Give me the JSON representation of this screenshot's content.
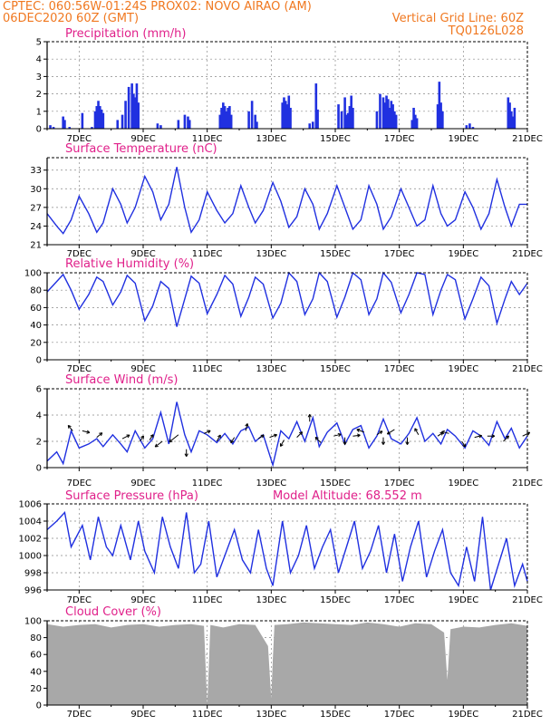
{
  "header": {
    "line1_left": "CPTEC:   060:56W-01:24S   PROX02: NOVO AIRAO (AM)",
    "line2_left": "06DEC2020 60Z (GMT)",
    "line2_right": "Vertical Grid Line: 60Z",
    "line3_right": "TQ0126L028"
  },
  "colors": {
    "header": "#f07820",
    "title": "#e0208a",
    "series": "#2030e0",
    "cloud": "#a8a8a8",
    "grid": "#888888"
  },
  "x_axis": {
    "range_days": [
      6,
      21
    ],
    "tick_days": [
      7,
      9,
      11,
      13,
      15,
      17,
      19,
      21
    ],
    "tick_labels": [
      "7DEC",
      "9DEC",
      "11DEC",
      "13DEC",
      "15DEC",
      "17DEC",
      "19DEC",
      "21DEC"
    ]
  },
  "chart_data": [
    {
      "type": "bar",
      "title": "Precipitation (mm/h)",
      "ylim": [
        0,
        5
      ],
      "yticks": [
        0,
        1,
        2,
        3,
        4,
        5
      ],
      "x_days": [
        6.1,
        6.2,
        6.5,
        6.55,
        6.7,
        7.1,
        7.4,
        7.5,
        7.55,
        7.6,
        7.65,
        7.7,
        7.75,
        8.2,
        8.35,
        8.45,
        8.55,
        8.65,
        8.7,
        8.75,
        8.8,
        8.85,
        9.45,
        9.55,
        10.1,
        10.3,
        10.4,
        10.45,
        11.4,
        11.45,
        11.5,
        11.55,
        11.6,
        11.65,
        11.7,
        11.75,
        12.3,
        12.4,
        12.5,
        12.55,
        13.35,
        13.4,
        13.45,
        13.5,
        13.55,
        13.6,
        14.2,
        14.3,
        14.4,
        14.45,
        15.1,
        15.2,
        15.3,
        15.35,
        15.4,
        15.45,
        15.5,
        15.55,
        16.3,
        16.4,
        16.5,
        16.55,
        16.6,
        16.65,
        16.7,
        16.75,
        16.8,
        16.85,
        16.9,
        17.4,
        17.45,
        17.5,
        17.55,
        18.2,
        18.25,
        18.3,
        18.35,
        19.1,
        19.2,
        19.3,
        20.4,
        20.45,
        20.5,
        20.55,
        20.6
      ],
      "values": [
        0.2,
        0.1,
        0.7,
        0.5,
        0.1,
        0.9,
        0.1,
        1.0,
        1.3,
        1.6,
        1.3,
        1.1,
        0.9,
        0.5,
        0.8,
        1.6,
        2.4,
        2.6,
        2.0,
        1.8,
        2.6,
        1.5,
        0.3,
        0.2,
        0.5,
        0.8,
        0.7,
        0.5,
        0.8,
        1.2,
        1.5,
        1.3,
        1.0,
        1.2,
        1.3,
        0.8,
        1.0,
        1.6,
        0.8,
        0.4,
        1.5,
        1.8,
        1.6,
        1.4,
        1.9,
        1.2,
        0.3,
        0.4,
        2.6,
        1.1,
        1.4,
        1.0,
        1.8,
        0.8,
        0.9,
        1.3,
        1.9,
        1.2,
        1.0,
        2.0,
        1.8,
        1.5,
        1.9,
        1.7,
        1.2,
        1.6,
        1.4,
        1.0,
        0.8,
        0.5,
        1.2,
        0.8,
        0.6,
        1.4,
        2.7,
        1.5,
        1.0,
        0.2,
        0.3,
        0.1,
        1.8,
        1.5,
        1.0,
        0.7,
        1.2
      ]
    },
    {
      "type": "line",
      "title": "Surface Temperature (nC)",
      "ylim": [
        21,
        35
      ],
      "yticks": [
        21,
        24,
        27,
        30,
        33
      ],
      "x_days": [
        6,
        6.3,
        6.5,
        6.75,
        7,
        7.3,
        7.55,
        7.75,
        8.05,
        8.3,
        8.5,
        8.75,
        9.05,
        9.3,
        9.55,
        9.8,
        10.05,
        10.3,
        10.5,
        10.75,
        11,
        11.3,
        11.55,
        11.8,
        12.05,
        12.3,
        12.5,
        12.75,
        13.05,
        13.3,
        13.55,
        13.8,
        14.05,
        14.3,
        14.5,
        14.75,
        15.05,
        15.3,
        15.55,
        15.8,
        16.05,
        16.3,
        16.5,
        16.75,
        17.05,
        17.3,
        17.55,
        17.8,
        18.05,
        18.3,
        18.5,
        18.75,
        19.05,
        19.3,
        19.55,
        19.8,
        20.05,
        20.3,
        20.5,
        20.75,
        21
      ],
      "values": [
        26,
        24,
        22.8,
        25,
        28.8,
        26,
        23,
        24.5,
        30,
        27.5,
        24.5,
        27,
        32,
        29.5,
        25,
        27.5,
        33.5,
        27,
        23,
        25,
        29.5,
        26.5,
        24.5,
        26,
        30.5,
        27,
        24.5,
        26.5,
        31,
        28,
        23.8,
        25.5,
        30,
        27.5,
        23.5,
        26,
        30.5,
        27,
        23.5,
        25,
        30.5,
        27.5,
        23.5,
        25.5,
        30,
        27,
        24,
        25,
        30.5,
        26,
        24,
        25,
        29.5,
        27,
        23.5,
        26,
        31.5,
        27,
        24,
        27.5,
        27.5
      ]
    },
    {
      "type": "line",
      "title": "Relative Humidity (%)",
      "ylim": [
        0,
        100
      ],
      "yticks": [
        0,
        20,
        40,
        60,
        80,
        100
      ],
      "x_days": [
        6,
        6.3,
        6.5,
        6.75,
        7,
        7.3,
        7.55,
        7.75,
        8.05,
        8.3,
        8.5,
        8.75,
        9.05,
        9.3,
        9.55,
        9.8,
        10.05,
        10.3,
        10.5,
        10.75,
        11,
        11.3,
        11.55,
        11.8,
        12.05,
        12.3,
        12.5,
        12.75,
        13.05,
        13.3,
        13.55,
        13.8,
        14.05,
        14.3,
        14.5,
        14.75,
        15.05,
        15.3,
        15.55,
        15.8,
        16.05,
        16.3,
        16.5,
        16.75,
        17.05,
        17.3,
        17.55,
        17.8,
        18.05,
        18.3,
        18.5,
        18.75,
        19.05,
        19.3,
        19.55,
        19.8,
        20.05,
        20.3,
        20.5,
        20.75,
        21
      ],
      "values": [
        78,
        90,
        98,
        80,
        58,
        75,
        95,
        90,
        63,
        78,
        97,
        88,
        45,
        62,
        90,
        82,
        38,
        70,
        96,
        88,
        53,
        75,
        97,
        87,
        50,
        72,
        95,
        87,
        48,
        65,
        100,
        90,
        52,
        70,
        100,
        90,
        49,
        72,
        100,
        92,
        52,
        70,
        100,
        89,
        54,
        75,
        100,
        98,
        52,
        80,
        98,
        92,
        47,
        70,
        95,
        85,
        42,
        70,
        90,
        75,
        88
      ]
    },
    {
      "type": "line",
      "title": "Surface Wind (m/s)",
      "ylim": [
        0,
        6
      ],
      "yticks": [
        0,
        2,
        4,
        6
      ],
      "x_days": [
        6,
        6.3,
        6.5,
        6.75,
        7,
        7.3,
        7.55,
        7.75,
        8.05,
        8.3,
        8.5,
        8.75,
        9.05,
        9.3,
        9.55,
        9.8,
        10.05,
        10.3,
        10.5,
        10.75,
        11,
        11.3,
        11.55,
        11.8,
        12.05,
        12.3,
        12.5,
        12.75,
        13.05,
        13.3,
        13.55,
        13.8,
        14.05,
        14.3,
        14.5,
        14.75,
        15.05,
        15.3,
        15.55,
        15.8,
        16.05,
        16.3,
        16.5,
        16.75,
        17.05,
        17.3,
        17.55,
        17.8,
        18.05,
        18.3,
        18.5,
        18.75,
        19.05,
        19.3,
        19.55,
        19.8,
        20.05,
        20.3,
        20.5,
        20.75,
        21
      ],
      "values": [
        0.5,
        1.2,
        0.3,
        2.8,
        1.5,
        1.8,
        2.2,
        1.6,
        2.5,
        1.8,
        1.2,
        2.8,
        1.5,
        2.2,
        4.2,
        1.8,
        5.0,
        2.5,
        1.2,
        2.8,
        2.5,
        1.9,
        2.6,
        1.8,
        2.8,
        3.1,
        2.0,
        2.5,
        0.2,
        2.8,
        2.2,
        3.5,
        2.0,
        3.8,
        1.6,
        2.7,
        3.4,
        1.8,
        2.9,
        3.2,
        1.5,
        2.4,
        3.7,
        2.2,
        1.8,
        2.6,
        3.8,
        2.0,
        2.6,
        1.8,
        2.9,
        2.4,
        1.5,
        2.8,
        2.4,
        1.7,
        3.5,
        2.2,
        3.0,
        1.5,
        2.4
      ],
      "wind_barbs": [
        {
          "x": 6.8,
          "y": 2.8,
          "dx": -5,
          "dy": -6
        },
        {
          "x": 7.1,
          "y": 2.8,
          "dx": 8,
          "dy": 2
        },
        {
          "x": 7.55,
          "y": 2.3,
          "dx": 6,
          "dy": -5
        },
        {
          "x": 8.35,
          "y": 2.2,
          "dx": 8,
          "dy": -4
        },
        {
          "x": 8.9,
          "y": 2.0,
          "dx": 4,
          "dy": -6
        },
        {
          "x": 9.2,
          "y": 2.1,
          "dx": 4,
          "dy": -6
        },
        {
          "x": 9.6,
          "y": 2.0,
          "dx": -8,
          "dy": 6
        },
        {
          "x": 10.1,
          "y": 2.5,
          "dx": -10,
          "dy": 8
        },
        {
          "x": 10.35,
          "y": 1.4,
          "dx": 0,
          "dy": 8
        },
        {
          "x": 10.9,
          "y": 2.6,
          "dx": 7,
          "dy": -3
        },
        {
          "x": 11.3,
          "y": 2.0,
          "dx": 4,
          "dy": -7
        },
        {
          "x": 11.85,
          "y": 2.3,
          "dx": -4,
          "dy": 6
        },
        {
          "x": 12.2,
          "y": 2.8,
          "dx": 2,
          "dy": -8
        },
        {
          "x": 12.6,
          "y": 2.2,
          "dx": 6,
          "dy": -4
        },
        {
          "x": 12.95,
          "y": 2.3,
          "dx": 8,
          "dy": -3
        },
        {
          "x": 13.4,
          "y": 2.1,
          "dx": -4,
          "dy": 7
        },
        {
          "x": 13.8,
          "y": 2.3,
          "dx": 6,
          "dy": -6
        },
        {
          "x": 14.2,
          "y": 3.5,
          "dx": 0,
          "dy": -8
        },
        {
          "x": 14.55,
          "y": 1.9,
          "dx": -6,
          "dy": -6
        },
        {
          "x": 14.95,
          "y": 2.4,
          "dx": 8,
          "dy": -2
        },
        {
          "x": 15.3,
          "y": 2.3,
          "dx": 0,
          "dy": 8
        },
        {
          "x": 15.55,
          "y": 2.4,
          "dx": 8,
          "dy": -1
        },
        {
          "x": 15.9,
          "y": 2.7,
          "dx": -8,
          "dy": -3
        },
        {
          "x": 16.3,
          "y": 2.5,
          "dx": 6,
          "dy": -4
        },
        {
          "x": 16.5,
          "y": 2.3,
          "dx": 0,
          "dy": 8
        },
        {
          "x": 16.85,
          "y": 2.9,
          "dx": -8,
          "dy": 5
        },
        {
          "x": 17.25,
          "y": 2.3,
          "dx": 0,
          "dy": 8
        },
        {
          "x": 17.6,
          "y": 2.5,
          "dx": -4,
          "dy": -7
        },
        {
          "x": 18.2,
          "y": 2.4,
          "dx": 6,
          "dy": -4
        },
        {
          "x": 18.55,
          "y": 2.6,
          "dx": -8,
          "dy": -2
        },
        {
          "x": 18.95,
          "y": 2.0,
          "dx": 4,
          "dy": 6
        },
        {
          "x": 19.35,
          "y": 2.3,
          "dx": 8,
          "dy": -2
        },
        {
          "x": 19.75,
          "y": 2.4,
          "dx": 8,
          "dy": 0
        },
        {
          "x": 20.25,
          "y": 2.0,
          "dx": 6,
          "dy": -6
        },
        {
          "x": 20.85,
          "y": 2.4,
          "dx": 8,
          "dy": -4
        }
      ]
    },
    {
      "type": "line",
      "title": "Surface Pressure (hPa)",
      "subtitle": "Model Altitude: 68.552 m",
      "ylim": [
        996,
        1006
      ],
      "yticks": [
        996,
        998,
        1000,
        1002,
        1004,
        1006
      ],
      "x_days": [
        6,
        6.3,
        6.55,
        6.75,
        7.1,
        7.35,
        7.6,
        7.85,
        8.05,
        8.3,
        8.6,
        8.85,
        9.05,
        9.35,
        9.6,
        9.85,
        10.1,
        10.35,
        10.6,
        10.8,
        11.05,
        11.3,
        11.6,
        11.85,
        12.1,
        12.35,
        12.6,
        12.85,
        13.05,
        13.35,
        13.6,
        13.85,
        14.1,
        14.35,
        14.6,
        14.85,
        15.1,
        15.35,
        15.6,
        15.85,
        16.1,
        16.35,
        16.6,
        16.85,
        17.1,
        17.35,
        17.6,
        17.85,
        18.1,
        18.35,
        18.6,
        18.85,
        19.1,
        19.35,
        19.6,
        19.85,
        20.1,
        20.35,
        20.6,
        20.85,
        21
      ],
      "values": [
        1003,
        1004,
        1005,
        1001,
        1003.5,
        999.5,
        1004.5,
        1001,
        1000,
        1003.5,
        999.5,
        1004,
        1000.5,
        998,
        1004.5,
        1001,
        998.5,
        1005,
        998,
        999,
        1004,
        997.5,
        1000.5,
        1003,
        999.5,
        998,
        1003,
        998.5,
        996.5,
        1004,
        998,
        1000,
        1003.5,
        998.5,
        1001,
        1003,
        998,
        1001,
        1004,
        998.5,
        1000.5,
        1003.5,
        998,
        1002.5,
        997,
        1001,
        1004,
        997.5,
        1000.5,
        1003,
        998,
        996.5,
        1001,
        997,
        1004.5,
        996,
        999,
        1002,
        996.5,
        999,
        997
      ]
    },
    {
      "type": "area",
      "title": "Cloud Cover (%)",
      "ylim": [
        0,
        100
      ],
      "yticks": [
        0,
        20,
        40,
        60,
        80,
        100
      ],
      "x_days": [
        6,
        6.5,
        7,
        7.5,
        8,
        8.5,
        9,
        9.5,
        10,
        10.5,
        10.9,
        11,
        11.1,
        11.5,
        12,
        12.5,
        12.9,
        13,
        13.05,
        13.1,
        13.5,
        14,
        14.5,
        15,
        15.5,
        16,
        16.5,
        17,
        17.5,
        18,
        18.4,
        18.5,
        18.6,
        19,
        19.5,
        20,
        20.5,
        21
      ],
      "values": [
        96,
        93,
        95,
        96,
        92,
        95,
        96,
        93,
        95,
        96,
        94,
        0,
        95,
        92,
        96,
        95,
        70,
        8,
        55,
        95,
        96,
        98,
        97,
        96,
        95,
        98,
        96,
        93,
        97,
        96,
        86,
        30,
        90,
        93,
        92,
        95,
        97,
        94
      ]
    }
  ]
}
